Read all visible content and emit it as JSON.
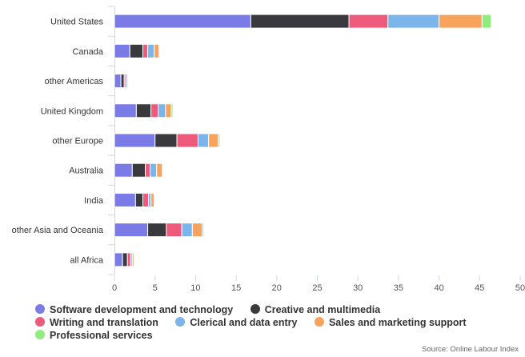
{
  "chart_data": {
    "type": "bar",
    "orientation": "horizontal",
    "stacked": true,
    "categories": [
      "United States",
      "Canada",
      "other Americas",
      "United Kingdom",
      "other Europe",
      "Australia",
      "India",
      "other Asia and Oceania",
      "all Africa"
    ],
    "series": [
      {
        "name": "Software development and technology",
        "color": "#7b7be8",
        "values": [
          16.8,
          1.9,
          0.8,
          2.7,
          5.0,
          2.2,
          2.6,
          4.1,
          1.0
        ]
      },
      {
        "name": "Creative and multimedia",
        "color": "#3a3a3e",
        "values": [
          12.1,
          1.6,
          0.4,
          1.8,
          2.7,
          1.6,
          0.9,
          2.3,
          0.6
        ]
      },
      {
        "name": "Writing and translation",
        "color": "#ee5a7c",
        "values": [
          4.8,
          0.6,
          0.2,
          0.9,
          2.6,
          0.6,
          0.7,
          1.9,
          0.4
        ]
      },
      {
        "name": "Clerical and data entry",
        "color": "#7cb5ec",
        "values": [
          6.3,
          0.8,
          0.2,
          0.9,
          1.3,
          0.8,
          0.3,
          1.3,
          0.2
        ]
      },
      {
        "name": "Sales and marketing support",
        "color": "#f7a35c",
        "values": [
          5.3,
          0.6,
          0.1,
          0.7,
          1.2,
          0.7,
          0.4,
          1.2,
          0.2
        ]
      },
      {
        "name": "Professional services",
        "color": "#90ed7d",
        "values": [
          1.1,
          0.1,
          0.05,
          0.2,
          0.2,
          0.1,
          0.1,
          0.2,
          0.05
        ]
      }
    ],
    "xlim": [
      0,
      50
    ],
    "ticks": [
      0,
      5,
      10,
      15,
      20,
      25,
      30,
      35,
      40,
      45,
      50
    ],
    "grid": false,
    "legend_position": "bottom"
  },
  "source": "Source: Online Labour Index"
}
